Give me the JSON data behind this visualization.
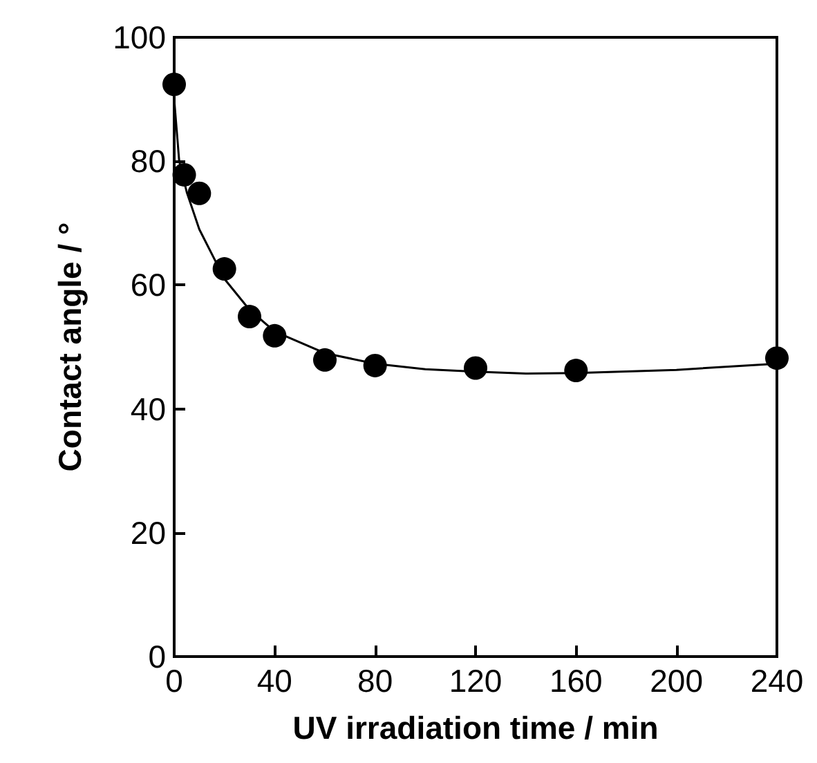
{
  "chart_data": {
    "type": "scatter",
    "xlabel": "UV irradiation time / min",
    "ylabel": "Contact angle / °",
    "xlim": [
      0,
      240
    ],
    "xticks": [
      0,
      40,
      80,
      120,
      160,
      200,
      240
    ],
    "ylim": [
      0,
      100
    ],
    "yticks": [
      0,
      20,
      40,
      60,
      80,
      100
    ],
    "grid": false,
    "series": [
      {
        "marker": "circle",
        "color": "#000000",
        "x": [
          0,
          4,
          10,
          20,
          30,
          40,
          60,
          80,
          120,
          160,
          240
        ],
        "values": [
          92.4,
          77.8,
          74.8,
          62.6,
          54.9,
          51.8,
          47.9,
          47.0,
          46.6,
          46.2,
          48.2
        ]
      },
      {
        "type": "line",
        "marker": "none",
        "line_style": "solid",
        "color": "#000000",
        "x": [
          0,
          2,
          5,
          10,
          20,
          30,
          40,
          60,
          80,
          100,
          120,
          140,
          160,
          200,
          240
        ],
        "values": [
          90,
          80,
          75,
          69,
          61,
          56,
          52.5,
          49,
          47.3,
          46.4,
          46,
          45.7,
          45.8,
          46.3,
          47.3
        ]
      }
    ]
  }
}
